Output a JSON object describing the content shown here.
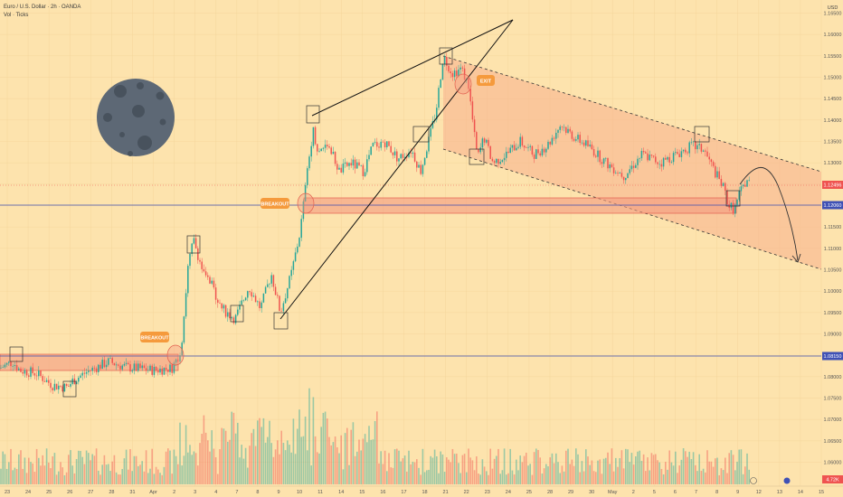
{
  "header": {
    "symbol": "Euro / U.S. Dollar · 2h · OANDA",
    "volume_label": "Vol · Ticks",
    "currency": "USD"
  },
  "price_axis": {
    "ticks": [
      "1.16500",
      "1.16000",
      "1.15500",
      "1.15000",
      "1.14500",
      "1.14000",
      "1.13500",
      "1.13000",
      "1.12500",
      "1.12000",
      "1.11500",
      "1.11000",
      "1.10500",
      "1.10000",
      "1.09500",
      "1.09000",
      "1.08500",
      "1.08000",
      "1.07500",
      "1.07000",
      "1.06500",
      "1.06000"
    ],
    "current_price": "1.12496",
    "level_upper": "1.12060",
    "level_lower": "1.08150",
    "volume_readout": "4.72K"
  },
  "time_axis": {
    "ticks": [
      "23",
      "24",
      "25",
      "26",
      "27",
      "28",
      "31",
      "Apr",
      "2",
      "3",
      "4",
      "7",
      "8",
      "9",
      "10",
      "11",
      "14",
      "15",
      "16",
      "17",
      "18",
      "21",
      "22",
      "23",
      "24",
      "25",
      "28",
      "29",
      "30",
      "May",
      "2",
      "5",
      "6",
      "7",
      "8",
      "9",
      "12",
      "13",
      "14",
      "15"
    ]
  },
  "annotations": {
    "breakout_1": "BREAKOUT",
    "breakout_2": "BREAKOUT",
    "exit": "EXIT"
  },
  "colors": {
    "background": "#fde3ad",
    "bull": "#26a69a",
    "bear": "#ef5350",
    "zone": "#f49a7f",
    "channel": "#f7b08c",
    "level_line": "#3f51b5",
    "label_orange": "#f59a3c",
    "moon": "#5d6875"
  },
  "chart_data": {
    "type": "candlestick",
    "instrument": "Euro / U.S. Dollar",
    "timeframe": "2h",
    "y_range": [
      1.058,
      1.167
    ],
    "anchors": [
      [
        0,
        1.082
      ],
      [
        14,
        1.0835
      ],
      [
        22,
        1.0815
      ],
      [
        40,
        1.0808
      ],
      [
        58,
        1.078
      ],
      [
        75,
        1.0775
      ],
      [
        80,
        1.079
      ],
      [
        95,
        1.081
      ],
      [
        120,
        1.0835
      ],
      [
        140,
        1.0822
      ],
      [
        170,
        1.0815
      ],
      [
        190,
        1.082
      ],
      [
        200,
        1.086
      ],
      [
        208,
        1.106
      ],
      [
        214,
        1.112
      ],
      [
        225,
        1.104
      ],
      [
        235,
        1.101
      ],
      [
        245,
        1.096
      ],
      [
        260,
        1.0935
      ],
      [
        275,
        1.101
      ],
      [
        288,
        1.096
      ],
      [
        300,
        1.104
      ],
      [
        310,
        1.095
      ],
      [
        322,
        1.104
      ],
      [
        332,
        1.114
      ],
      [
        338,
        1.125
      ],
      [
        346,
        1.138
      ],
      [
        352,
        1.132
      ],
      [
        362,
        1.135
      ],
      [
        375,
        1.128
      ],
      [
        388,
        1.13
      ],
      [
        402,
        1.128
      ],
      [
        412,
        1.134
      ],
      [
        425,
        1.135
      ],
      [
        440,
        1.131
      ],
      [
        455,
        1.133
      ],
      [
        465,
        1.128
      ],
      [
        475,
        1.136
      ],
      [
        482,
        1.142
      ],
      [
        490,
        1.155
      ],
      [
        500,
        1.151
      ],
      [
        510,
        1.152
      ],
      [
        518,
        1.148
      ],
      [
        524,
        1.137
      ],
      [
        528,
        1.131
      ],
      [
        535,
        1.136
      ],
      [
        545,
        1.13
      ],
      [
        560,
        1.132
      ],
      [
        575,
        1.135
      ],
      [
        590,
        1.132
      ],
      [
        605,
        1.134
      ],
      [
        620,
        1.139
      ],
      [
        635,
        1.136
      ],
      [
        650,
        1.134
      ],
      [
        670,
        1.13
      ],
      [
        690,
        1.127
      ],
      [
        710,
        1.132
      ],
      [
        730,
        1.13
      ],
      [
        748,
        1.132
      ],
      [
        765,
        1.134
      ],
      [
        778,
        1.133
      ],
      [
        790,
        1.128
      ],
      [
        800,
        1.124
      ],
      [
        806,
        1.12
      ],
      [
        812,
        1.119
      ],
      [
        818,
        1.123
      ],
      [
        826,
        1.126
      ],
      [
        830,
        1.125
      ]
    ],
    "zones": [
      {
        "label": "breakout zone April",
        "y": [
          1.08,
          1.086
        ]
      },
      {
        "label": "breakout zone May",
        "y": [
          1.118,
          1.1225
        ]
      }
    ],
    "levels": [
      1.1206,
      1.0815
    ],
    "last_price": 1.12496
  }
}
